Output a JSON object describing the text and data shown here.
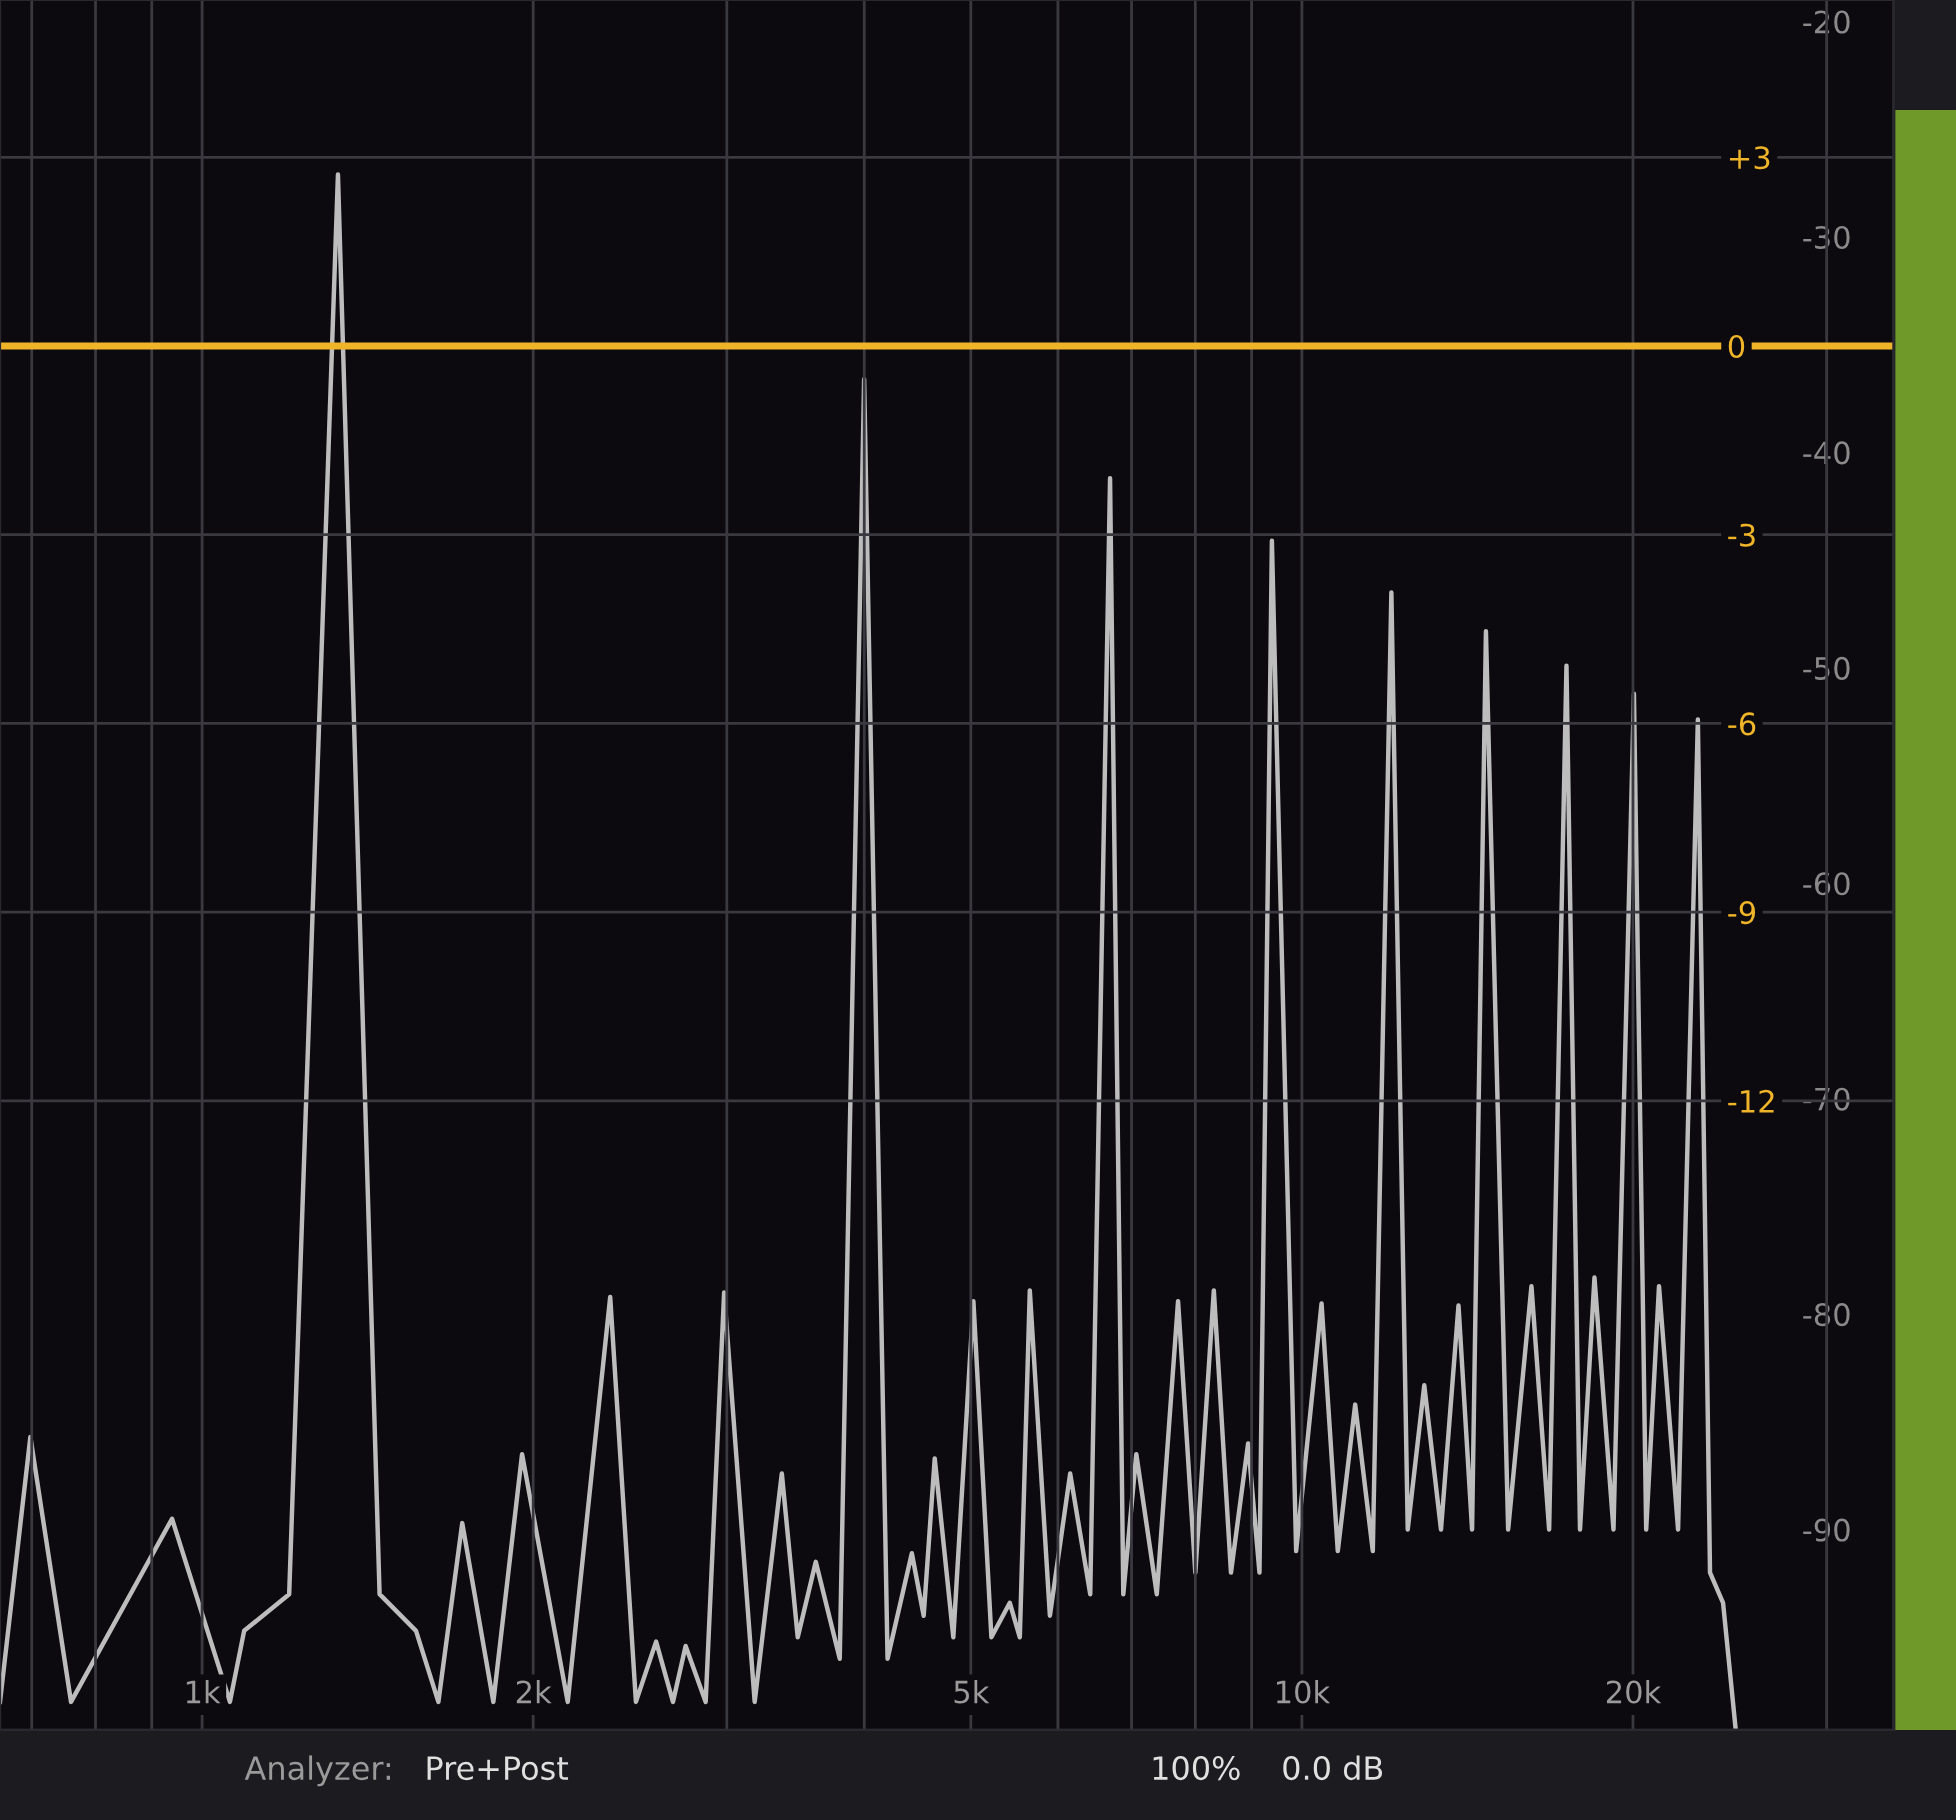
{
  "chart_data": {
    "type": "line",
    "log": "x",
    "x": [
      655,
      698,
      760,
      939,
      1060,
      1092,
      1200,
      1329,
      1450,
      1565,
      1640,
      1724,
      1840,
      1954,
      2150,
      2350,
      2480,
      2587,
      2680,
      2752,
      2870,
      2983,
      3180,
      3366,
      3480,
      3614,
      3800,
      3999,
      4200,
      4419,
      4530,
      4636,
      4820,
      5027,
      5220,
      5425,
      5540,
      5657,
      5900,
      6156,
      6420,
      6692,
      6880,
      7070,
      7380,
      7716,
      8000,
      8316,
      8620,
      8935,
      9150,
      9391,
      9880,
      10420,
      10780,
      11180,
      11600,
      12060,
      12480,
      12920,
      13380,
      13880,
      14280,
      14700,
      15400,
      16170,
      16780,
      17400,
      17900,
      18450,
      19200,
      20040,
      20560,
      21120,
      21980,
      22910,
      23500,
      24150,
      24800
    ],
    "series": [
      {
        "color": "#bdbdbd",
        "values": [
          -98,
          -85.7,
          -98,
          -89.5,
          -98,
          -94.7,
          -93,
          -27.1,
          -93,
          -94.7,
          -98,
          -89.7,
          -98,
          -86.5,
          -98,
          -79.2,
          -98,
          -95.2,
          -98,
          -95.4,
          -98,
          -79.0,
          -98,
          -87.4,
          -95,
          -91.5,
          -96,
          -36.6,
          -96,
          -91.1,
          -94,
          -86.7,
          -95,
          -79.4,
          -95,
          -93.4,
          -95,
          -78.9,
          -94,
          -87.4,
          -93,
          -41.2,
          -93,
          -86.5,
          -93,
          -79.4,
          -92,
          -78.9,
          -92,
          -86.0,
          -92,
          -44.1,
          -91,
          -79.5,
          -91,
          -84.2,
          -91,
          -46.5,
          -90,
          -83.3,
          -90,
          -79.6,
          -90,
          -48.3,
          -90,
          -78.7,
          -90,
          -49.9,
          -90,
          -78.3,
          -90,
          -51.2,
          -90,
          -78.7,
          -90,
          -52.4,
          -92,
          -93.4,
          -99.3
        ]
      },
      {
        "color": "#f0b429",
        "axis": "y2",
        "x": [
          655,
          34500
        ],
        "values": [
          0,
          0
        ]
      }
    ],
    "xlim": [
      655,
      34500
    ],
    "ylim": [
      -99.3,
      -19
    ],
    "y2lim": [
      -22,
      5.5
    ],
    "xticks": [
      {
        "value": 700,
        "label": null
      },
      {
        "value": 800,
        "label": null
      },
      {
        "value": 900,
        "label": null
      },
      {
        "value": 1000,
        "label": "1k"
      },
      {
        "value": 2000,
        "label": "2k"
      },
      {
        "value": 3000,
        "label": null
      },
      {
        "value": 4000,
        "label": null
      },
      {
        "value": 5000,
        "label": "5k"
      },
      {
        "value": 6000,
        "label": null
      },
      {
        "value": 7000,
        "label": null
      },
      {
        "value": 8000,
        "label": null
      },
      {
        "value": 9000,
        "label": null
      },
      {
        "value": 10000,
        "label": "10k"
      },
      {
        "value": 20000,
        "label": "20k"
      },
      {
        "value": 30000,
        "label": null
      }
    ],
    "yticks": [
      -20,
      -30,
      -40,
      -50,
      -60,
      -70,
      -80,
      -90
    ],
    "y2ticks": [
      {
        "value": 3,
        "label": "+3"
      },
      0,
      -3,
      -6,
      -9,
      -12
    ],
    "grid": true,
    "marker": "none",
    "line_style": "solid",
    "annotations": [
      "Analyzer:",
      "Pre+Post",
      "100%",
      "0.0 dB"
    ]
  }
}
